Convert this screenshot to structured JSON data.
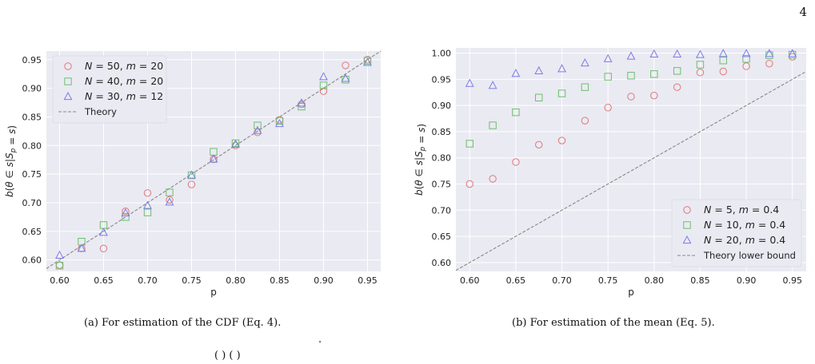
{
  "page_number": "4",
  "captions": {
    "left": "(a) For estimation of the CDF (Eq. 4).",
    "right": "(b) For estimation of the mean (Eq. 5)."
  },
  "stray_marks": {
    "dot": ".",
    "bottom": "(   )  (   )"
  },
  "chart_data": [
    {
      "type": "scatter",
      "title": "",
      "xlabel": "p",
      "ylabel": "b(θ ∈ s|S_p = s)",
      "xlim": [
        0.585,
        0.965
      ],
      "ylim": [
        0.58,
        0.965
      ],
      "xticks": [
        "0.60",
        "0.65",
        "0.70",
        "0.75",
        "0.80",
        "0.85",
        "0.90",
        "0.95"
      ],
      "yticks": [
        "0.60",
        "0.65",
        "0.70",
        "0.75",
        "0.80",
        "0.85",
        "0.90",
        "0.95"
      ],
      "grid": true,
      "legend_position": "top-left",
      "series": [
        {
          "name": "N = 50, m = 20",
          "marker": "circle",
          "color": "#e0777a",
          "x": [
            0.6,
            0.625,
            0.65,
            0.675,
            0.7,
            0.725,
            0.75,
            0.775,
            0.8,
            0.825,
            0.85,
            0.875,
            0.9,
            0.925,
            0.95
          ],
          "y": [
            0.591,
            0.62,
            0.62,
            0.685,
            0.717,
            0.705,
            0.732,
            0.776,
            0.8,
            0.823,
            0.845,
            0.872,
            0.895,
            0.94,
            0.95
          ]
        },
        {
          "name": "N = 40, m = 20",
          "marker": "square",
          "color": "#6cbf6c",
          "x": [
            0.6,
            0.625,
            0.65,
            0.675,
            0.7,
            0.725,
            0.75,
            0.775,
            0.8,
            0.825,
            0.85,
            0.875,
            0.9,
            0.925,
            0.95
          ],
          "y": [
            0.59,
            0.632,
            0.661,
            0.675,
            0.683,
            0.718,
            0.748,
            0.789,
            0.804,
            0.835,
            0.843,
            0.868,
            0.905,
            0.915,
            0.948
          ]
        },
        {
          "name": "N = 30, m = 12",
          "marker": "triangle",
          "color": "#7b7de8",
          "x": [
            0.6,
            0.625,
            0.65,
            0.675,
            0.7,
            0.725,
            0.75,
            0.775,
            0.8,
            0.825,
            0.85,
            0.875,
            0.9,
            0.925,
            0.95
          ],
          "y": [
            0.608,
            0.62,
            0.648,
            0.682,
            0.695,
            0.701,
            0.748,
            0.776,
            0.802,
            0.826,
            0.838,
            0.874,
            0.92,
            0.917,
            0.945
          ]
        }
      ],
      "reference_line": {
        "name": "Theory",
        "color": "#888888",
        "x": [
          0.585,
          0.965
        ],
        "y": [
          0.585,
          0.965
        ]
      }
    },
    {
      "type": "scatter",
      "title": "",
      "xlabel": "p",
      "ylabel": "b(θ ∈ s|S_p = s)",
      "xlim": [
        0.585,
        0.965
      ],
      "ylim": [
        0.583,
        1.01
      ],
      "xticks": [
        "0.60",
        "0.65",
        "0.70",
        "0.75",
        "0.80",
        "0.85",
        "0.90",
        "0.95"
      ],
      "yticks": [
        "0.60",
        "0.65",
        "0.70",
        "0.75",
        "0.80",
        "0.85",
        "0.90",
        "0.95",
        "1.00"
      ],
      "grid": true,
      "legend_position": "bottom-right",
      "series": [
        {
          "name": "N = 5, m = 0.4",
          "marker": "circle",
          "color": "#e0777a",
          "x": [
            0.6,
            0.625,
            0.65,
            0.675,
            0.7,
            0.725,
            0.75,
            0.775,
            0.8,
            0.825,
            0.85,
            0.875,
            0.9,
            0.925,
            0.95
          ],
          "y": [
            0.75,
            0.76,
            0.792,
            0.825,
            0.833,
            0.871,
            0.896,
            0.917,
            0.919,
            0.935,
            0.963,
            0.965,
            0.975,
            0.98,
            0.993
          ]
        },
        {
          "name": "N = 10, m = 0.4",
          "marker": "square",
          "color": "#6cbf6c",
          "x": [
            0.6,
            0.625,
            0.65,
            0.675,
            0.7,
            0.725,
            0.75,
            0.775,
            0.8,
            0.825,
            0.85,
            0.875,
            0.9,
            0.925,
            0.95
          ],
          "y": [
            0.827,
            0.862,
            0.887,
            0.915,
            0.923,
            0.935,
            0.955,
            0.957,
            0.96,
            0.966,
            0.978,
            0.986,
            0.989,
            0.996,
            0.997
          ]
        },
        {
          "name": "N = 20, m = 0.4",
          "marker": "triangle",
          "color": "#7b7de8",
          "x": [
            0.6,
            0.625,
            0.65,
            0.675,
            0.7,
            0.725,
            0.75,
            0.775,
            0.8,
            0.825,
            0.85,
            0.875,
            0.9,
            0.925,
            0.95
          ],
          "y": [
            0.942,
            0.938,
            0.961,
            0.966,
            0.97,
            0.981,
            0.989,
            0.994,
            0.998,
            0.998,
            0.997,
            0.999,
            0.999,
            0.999,
            0.999
          ]
        }
      ],
      "reference_line": {
        "name": "Theory lower bound",
        "color": "#888888",
        "x": [
          0.585,
          0.965
        ],
        "y": [
          0.585,
          0.965
        ]
      }
    }
  ]
}
